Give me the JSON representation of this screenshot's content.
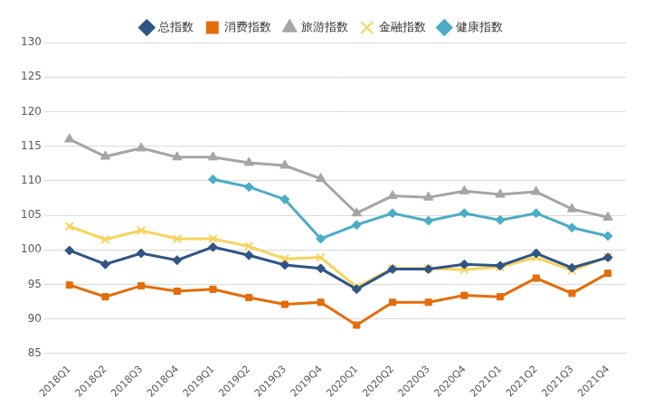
{
  "chart_data": {
    "type": "line",
    "categories": [
      "2018Q1",
      "2018Q2",
      "2018Q3",
      "2018Q4",
      "2019Q1",
      "2019Q2",
      "2019Q3",
      "2019Q4",
      "2020Q1",
      "2020Q2",
      "2020Q3",
      "2020Q4",
      "2021Q1",
      "2021Q2",
      "2021Q3",
      "2021Q4"
    ],
    "series": [
      {
        "name": "总指数",
        "color": "#2f5586",
        "marker": "diamond",
        "values": [
          99.9,
          97.9,
          99.5,
          98.5,
          100.4,
          99.2,
          97.8,
          97.3,
          94.3,
          97.2,
          97.2,
          97.9,
          97.7,
          99.5,
          97.4,
          98.9
        ]
      },
      {
        "name": "消费指数",
        "color": "#e46c0a",
        "marker": "square",
        "values": [
          94.9,
          93.2,
          94.8,
          94.0,
          94.3,
          93.1,
          92.1,
          92.4,
          89.1,
          92.4,
          92.4,
          93.4,
          93.2,
          95.9,
          93.7,
          96.6
        ]
      },
      {
        "name": "旅游指数",
        "color": "#a5a5a5",
        "marker": "triangle",
        "values": [
          116.0,
          113.5,
          114.7,
          113.4,
          113.4,
          112.6,
          112.2,
          110.3,
          105.3,
          107.8,
          107.6,
          108.5,
          108.0,
          108.4,
          105.9,
          104.7
        ]
      },
      {
        "name": "金融指数",
        "color": "#f7d35c",
        "marker": "x",
        "values": [
          103.4,
          101.5,
          102.8,
          101.6,
          101.6,
          100.5,
          98.7,
          98.9,
          94.6,
          97.3,
          97.3,
          97.1,
          97.5,
          98.9,
          97.0,
          99.0
        ]
      },
      {
        "name": "健康指数",
        "color": "#4bacc6",
        "marker": "diamond",
        "values": [
          null,
          null,
          null,
          null,
          110.2,
          109.1,
          107.3,
          101.6,
          103.6,
          105.3,
          104.2,
          105.3,
          104.3,
          105.3,
          103.2,
          102.0
        ]
      }
    ],
    "ylim": [
      85,
      130
    ],
    "yticks": [
      85,
      90,
      95,
      100,
      105,
      110,
      115,
      120,
      125,
      130
    ],
    "grid": true,
    "legend": "top"
  }
}
